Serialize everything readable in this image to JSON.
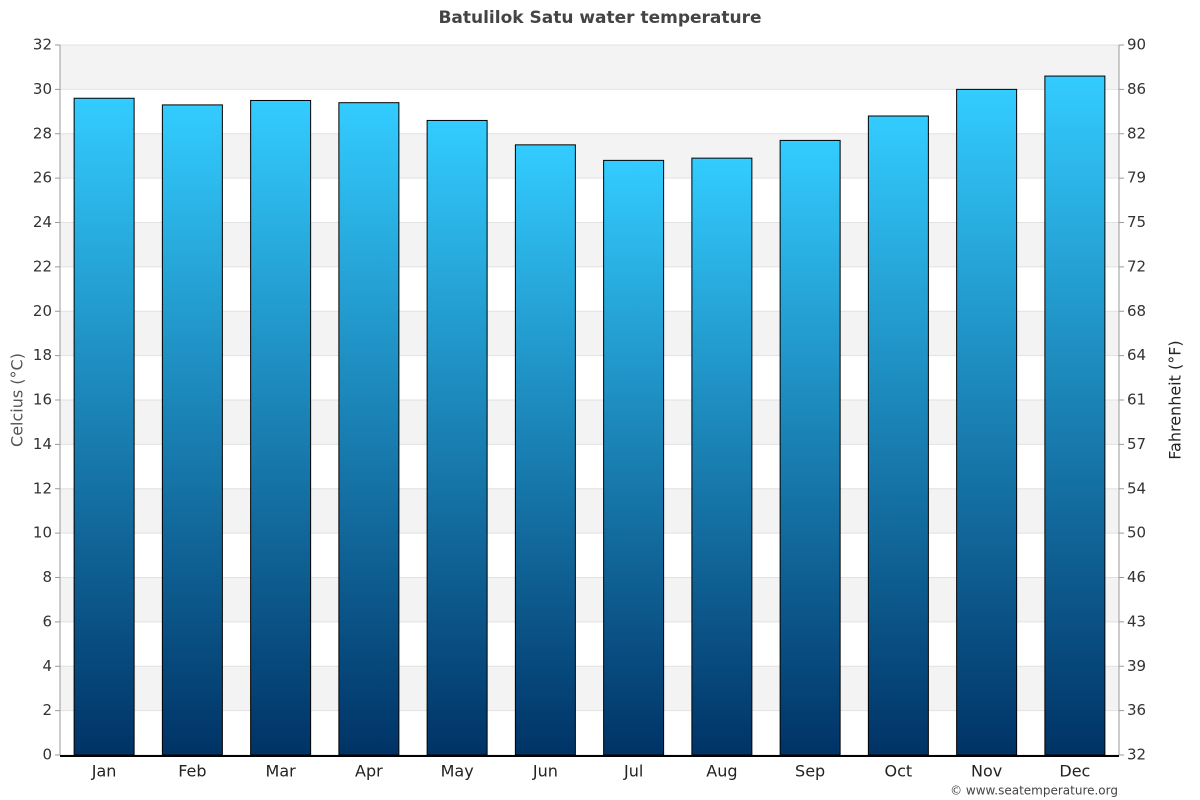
{
  "chart_data": {
    "type": "bar",
    "title": "Batulilok Satu water temperature",
    "y_label": "Celcius (°C)",
    "y2_label": "Fahrenheit (°F)",
    "credit": "© www.seatemperature.org",
    "categories": [
      "Jan",
      "Feb",
      "Mar",
      "Apr",
      "May",
      "Jun",
      "Jul",
      "Aug",
      "Sep",
      "Oct",
      "Nov",
      "Dec"
    ],
    "values": [
      29.6,
      29.3,
      29.5,
      29.4,
      28.6,
      27.5,
      26.8,
      26.9,
      27.7,
      28.8,
      30.0,
      30.6
    ],
    "color": [
      "#33ccff",
      "#003366"
    ],
    "ylim": [
      0,
      32
    ],
    "yticks": [
      0,
      2,
      4,
      6,
      8,
      10,
      12,
      14,
      16,
      18,
      20,
      22,
      24,
      26,
      28,
      30,
      32
    ],
    "y2lim": [
      32,
      89.6
    ],
    "y2ticks": [
      32,
      {
        "value": 35.6,
        "label": "36"
      },
      {
        "value": 39.2,
        "label": "39"
      },
      {
        "value": 42.8,
        "label": "43"
      },
      {
        "value": 46.4,
        "label": "46"
      },
      50,
      {
        "value": 53.6,
        "label": "54"
      },
      {
        "value": 57.2,
        "label": "57"
      },
      {
        "value": 60.8,
        "label": "61"
      },
      {
        "value": 64.4,
        "label": "64"
      },
      68,
      {
        "value": 71.6,
        "label": "72"
      },
      {
        "value": 75.2,
        "label": "75"
      },
      {
        "value": 78.8,
        "label": "79"
      },
      {
        "value": 82.4,
        "label": "82"
      },
      86,
      {
        "value": 89.6,
        "label": "90"
      }
    ],
    "grid": true
  }
}
